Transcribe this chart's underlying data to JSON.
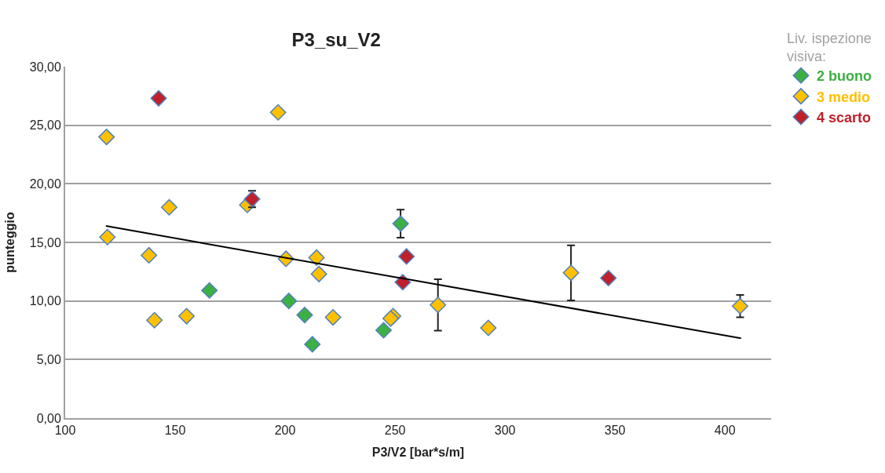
{
  "chart_data": {
    "type": "scatter",
    "title": "P3_su_V2",
    "xlabel": "P3/V2 [bar*s/m]",
    "ylabel": "punteggio",
    "legend_title": "Liv. ispezione visiva:",
    "xlim": [
      100,
      421
    ],
    "xticks": [
      100,
      150,
      200,
      250,
      300,
      350,
      400
    ],
    "ylim": [
      0,
      30
    ],
    "yticks": [
      {
        "value": 0,
        "label": "0,00"
      },
      {
        "value": 5,
        "label": "5,00"
      },
      {
        "value": 10,
        "label": "10,00"
      },
      {
        "value": 15,
        "label": "15,00"
      },
      {
        "value": 20,
        "label": "20,00"
      },
      {
        "value": 25,
        "label": "25,00"
      },
      {
        "value": 30,
        "label": "30,00"
      }
    ],
    "grid": "y",
    "legend": "right",
    "marker": "diamond",
    "series": [
      {
        "name": "2 buono",
        "color": "#3cb043",
        "x": [
          165.6,
          201.7,
          208.9,
          212.4,
          252.5,
          244.8
        ],
        "values": [
          10.9,
          10.0,
          8.8,
          6.3,
          16.6,
          7.5
        ],
        "errors": [
          null,
          null,
          null,
          null,
          1.2,
          null
        ]
      },
      {
        "name": "3 medio",
        "color": "#ffc000",
        "x": [
          118.8,
          196.8,
          182.8,
          147.3,
          119.2,
          138.1,
          140.6,
          155.2,
          200.4,
          214.3,
          215.4,
          221.8,
          269.5,
          249.1,
          248.0,
          292.4,
          330.0,
          406.9
        ],
        "values": [
          24.0,
          26.1,
          18.2,
          18.0,
          15.45,
          13.9,
          8.35,
          8.7,
          13.6,
          13.7,
          12.3,
          8.6,
          9.66,
          8.7,
          8.5,
          7.7,
          12.4,
          9.56
        ],
        "errors": [
          null,
          null,
          null,
          null,
          null,
          null,
          null,
          null,
          null,
          null,
          null,
          null,
          2.2,
          null,
          null,
          null,
          2.35,
          0.95
        ]
      },
      {
        "name": "4 scarto",
        "color": "#c0202a",
        "x": [
          142.5,
          185.0,
          255.2,
          253.5,
          347.0
        ],
        "values": [
          27.3,
          18.7,
          13.8,
          11.6,
          11.95
        ],
        "errors": [
          null,
          0.7,
          null,
          null,
          null
        ]
      },
      {
        "type": "line",
        "color": "#000000",
        "x": [
          118.5,
          407.3
        ],
        "values": [
          16.4,
          6.82
        ],
        "marker": "none"
      }
    ]
  }
}
